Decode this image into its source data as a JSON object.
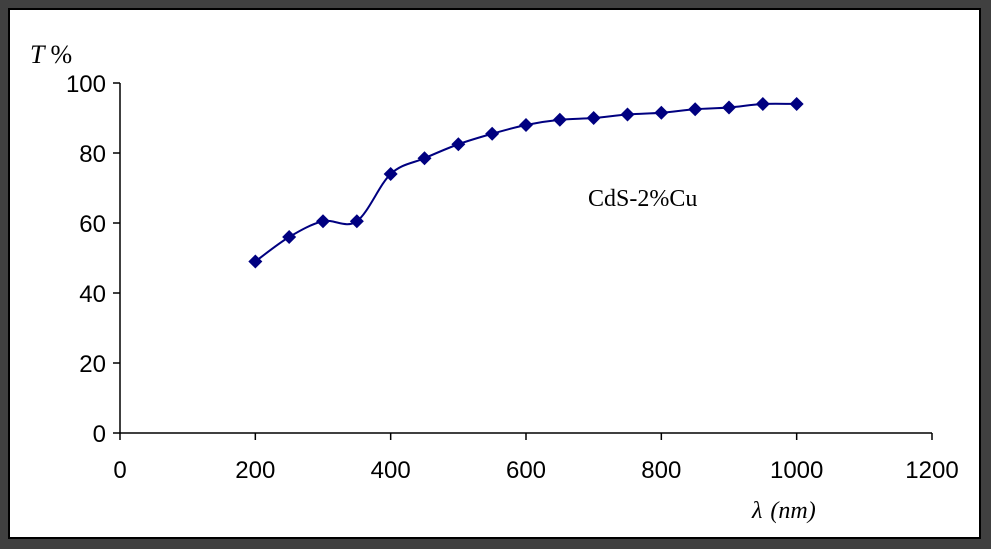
{
  "chart_data": {
    "type": "line",
    "title": "",
    "ylabel": "T%",
    "xlabel_symbol": "λ",
    "xlabel_unit": "(nm)",
    "xlim": [
      0,
      1200
    ],
    "ylim": [
      0,
      100
    ],
    "x_ticks": [
      "0",
      "200",
      "400",
      "600",
      "800",
      "1000",
      "1200"
    ],
    "y_ticks": [
      "0",
      "20",
      "40",
      "60",
      "80",
      "100"
    ],
    "grid": false,
    "marker": "diamond",
    "line_style": "smoothed",
    "series": [
      {
        "name": "CdS-2%Cu",
        "color": "#000080",
        "x": [
          200,
          250,
          300,
          350,
          400,
          450,
          500,
          550,
          600,
          650,
          700,
          750,
          800,
          850,
          900,
          950,
          1000
        ],
        "y": [
          49,
          56,
          60.5,
          60.5,
          74,
          78.5,
          82.5,
          85.5,
          88,
          89.5,
          90,
          91,
          91.5,
          92.5,
          93,
          94,
          94
        ]
      }
    ]
  }
}
